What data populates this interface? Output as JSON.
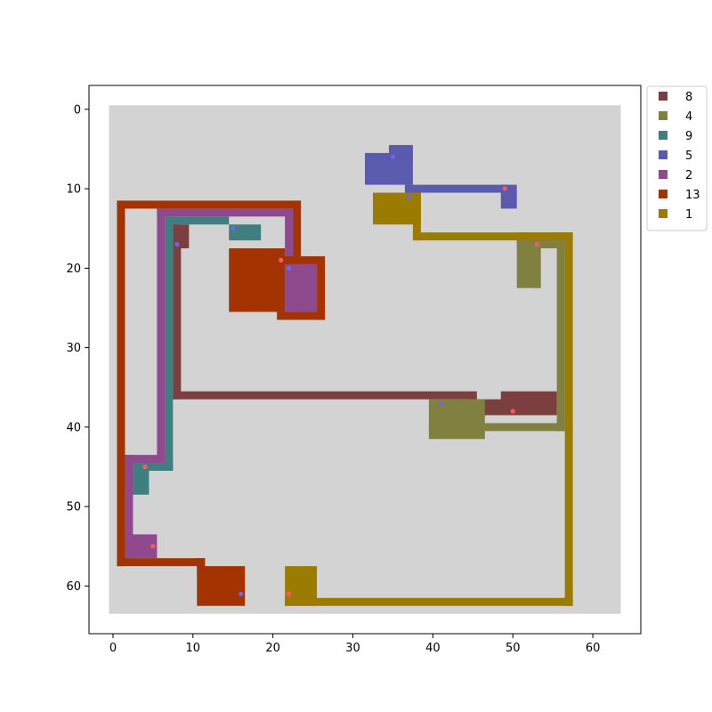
{
  "chart_data": {
    "type": "heatmap",
    "title": "",
    "xlabel": "",
    "ylabel": "",
    "xlim": [
      -3,
      66
    ],
    "ylim": [
      66,
      -3
    ],
    "grid": false,
    "background_color": "#d3d3d3",
    "grid_extent": [
      0,
      64
    ],
    "x_ticks": [
      0,
      10,
      20,
      30,
      40,
      50,
      60
    ],
    "y_ticks": [
      0,
      10,
      20,
      30,
      40,
      50,
      60
    ],
    "legend_position": "outside-top-right",
    "marker_colors": {
      "red": "#ff5a5a",
      "blue": "#6a6ae6"
    },
    "series": [
      {
        "name": "8",
        "color": "#7b3f3f",
        "rects": [
          [
            8,
            15,
            2,
            3
          ],
          [
            8,
            15,
            1,
            22
          ],
          [
            8,
            36,
            38,
            1
          ],
          [
            45,
            37,
            5,
            2
          ],
          [
            49,
            36,
            7,
            3
          ]
        ],
        "markers": [
          {
            "x": 8,
            "y": 17,
            "c": "blue"
          },
          {
            "x": 50,
            "y": 38,
            "c": "red"
          }
        ]
      },
      {
        "name": "4",
        "color": "#808040",
        "rects": [
          [
            51,
            17,
            3,
            6
          ],
          [
            51,
            16,
            6,
            2
          ],
          [
            56,
            16,
            1,
            25
          ],
          [
            40,
            40,
            17,
            1
          ],
          [
            40,
            37,
            7,
            5
          ]
        ],
        "markers": [
          {
            "x": 53,
            "y": 17,
            "c": "red"
          },
          {
            "x": 41,
            "y": 37,
            "c": "blue"
          }
        ]
      },
      {
        "name": "9",
        "color": "#3f7f7f",
        "rects": [
          [
            15,
            15,
            4,
            2
          ],
          [
            7,
            14,
            8,
            1
          ],
          [
            7,
            14,
            1,
            32
          ],
          [
            3,
            45,
            5,
            1
          ],
          [
            3,
            45,
            2,
            4
          ]
        ],
        "markers": [
          {
            "x": 15,
            "y": 15,
            "c": "blue"
          },
          {
            "x": 4,
            "y": 45,
            "c": "red"
          }
        ]
      },
      {
        "name": "5",
        "color": "#5a5aaf",
        "rects": [
          [
            32,
            6,
            6,
            4
          ],
          [
            35,
            5,
            3,
            2
          ],
          [
            37,
            10,
            13,
            1
          ],
          [
            49,
            10,
            2,
            3
          ]
        ],
        "markers": [
          {
            "x": 35,
            "y": 6,
            "c": "blue"
          },
          {
            "x": 49,
            "y": 10,
            "c": "red"
          }
        ]
      },
      {
        "name": "2",
        "color": "#8f4a8f",
        "rects": [
          [
            22,
            20,
            4,
            6
          ],
          [
            22,
            13,
            1,
            7
          ],
          [
            6,
            13,
            17,
            1
          ],
          [
            6,
            13,
            1,
            32
          ],
          [
            2,
            44,
            5,
            1
          ],
          [
            2,
            44,
            1,
            13
          ],
          [
            2,
            54,
            4,
            3
          ]
        ],
        "markers": [
          {
            "x": 22,
            "y": 20,
            "c": "blue"
          },
          {
            "x": 5,
            "y": 55,
            "c": "red"
          }
        ]
      },
      {
        "name": "13",
        "color": "#a33300",
        "rects": [
          [
            15,
            18,
            7,
            8
          ],
          [
            21,
            19,
            6,
            1
          ],
          [
            26,
            19,
            1,
            8
          ],
          [
            21,
            26,
            6,
            1
          ],
          [
            23,
            12,
            1,
            7
          ],
          [
            1,
            12,
            23,
            1
          ],
          [
            1,
            12,
            1,
            46
          ],
          [
            1,
            57,
            11,
            1
          ],
          [
            11,
            57,
            1,
            2
          ],
          [
            11,
            58,
            6,
            5
          ]
        ],
        "markers": [
          {
            "x": 21,
            "y": 19,
            "c": "red"
          },
          {
            "x": 16,
            "y": 61,
            "c": "blue"
          }
        ]
      },
      {
        "name": "1",
        "color": "#9b7c00",
        "rects": [
          [
            33,
            11,
            6,
            4
          ],
          [
            38,
            11,
            1,
            6
          ],
          [
            38,
            16,
            20,
            1
          ],
          [
            57,
            16,
            1,
            47
          ],
          [
            22,
            62,
            36,
            1
          ],
          [
            22,
            58,
            4,
            5
          ]
        ],
        "markers": [
          {
            "x": 37,
            "y": 11,
            "c": "blue"
          },
          {
            "x": 22,
            "y": 61,
            "c": "red"
          }
        ]
      }
    ]
  }
}
